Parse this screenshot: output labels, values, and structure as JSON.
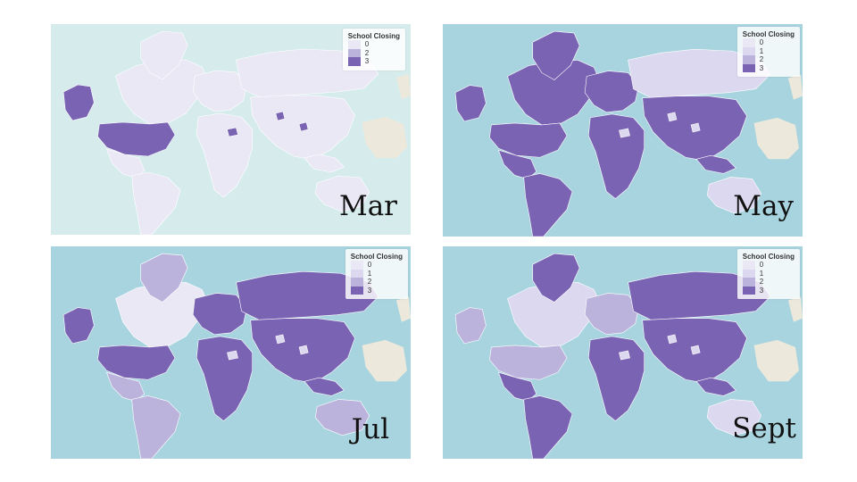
{
  "legend_title": "School Closing",
  "colors": {
    "ocean_mar": "#d6ecec",
    "ocean": "#a8d4df",
    "other_land": "#ece9dc",
    "level_0": "#ebe8f6",
    "level_1": "#dcd8ef",
    "level_2": "#bcb3dc",
    "level_3": "#7b63b3"
  },
  "panels": [
    {
      "month": "Mar",
      "legend_levels": [
        "0",
        "2",
        "3"
      ],
      "regions": {
        "north_america": "level_0",
        "alaska": "level_3",
        "usa": "level_3",
        "mexico": "level_0",
        "greenland": "level_0",
        "south_america": "level_0",
        "europe": "level_0",
        "africa": "level_0",
        "russia": "level_0",
        "asia": "level_0",
        "australia": "level_0",
        "indonesia": "level_0",
        "hotspots": "level_3"
      }
    },
    {
      "month": "May",
      "legend_levels": [
        "0",
        "1",
        "2",
        "3"
      ],
      "regions": {
        "north_america": "level_3",
        "alaska": "level_3",
        "usa": "level_3",
        "mexico": "level_3",
        "greenland": "level_3",
        "south_america": "level_3",
        "europe": "level_3",
        "africa": "level_3",
        "russia": "level_1",
        "asia": "level_3",
        "australia": "level_1",
        "indonesia": "level_3",
        "hotspots": "level_1"
      }
    },
    {
      "month": "Jul",
      "legend_levels": [
        "0",
        "1",
        "2",
        "3"
      ],
      "regions": {
        "north_america": "level_0",
        "alaska": "level_3",
        "usa": "level_3",
        "mexico": "level_2",
        "greenland": "level_2",
        "south_america": "level_2",
        "europe": "level_3",
        "africa": "level_3",
        "russia": "level_3",
        "asia": "level_3",
        "australia": "level_2",
        "indonesia": "level_3",
        "hotspots": "level_1"
      }
    },
    {
      "month": "Sept",
      "legend_levels": [
        "0",
        "1",
        "2",
        "3"
      ],
      "regions": {
        "north_america": "level_1",
        "alaska": "level_2",
        "usa": "level_2",
        "mexico": "level_3",
        "greenland": "level_3",
        "south_america": "level_3",
        "europe": "level_2",
        "africa": "level_3",
        "russia": "level_3",
        "asia": "level_3",
        "australia": "level_1",
        "indonesia": "level_3",
        "hotspots": "level_1"
      }
    }
  ]
}
